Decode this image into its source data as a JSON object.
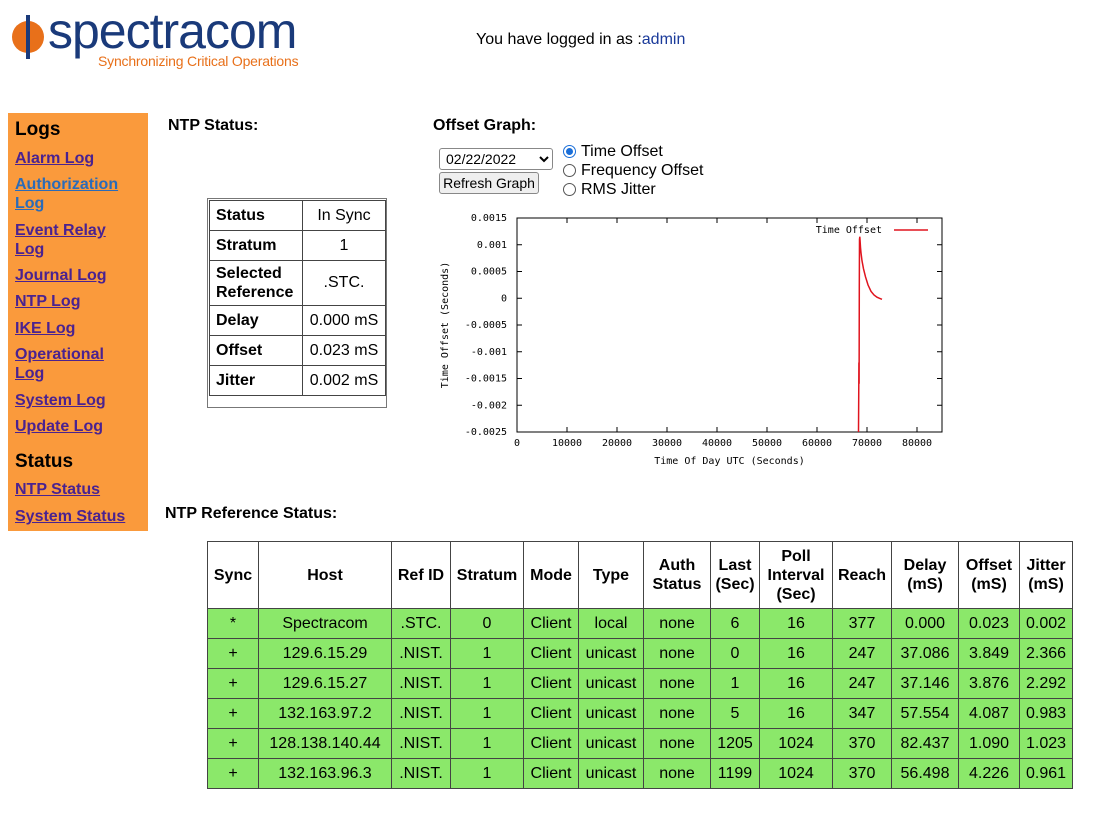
{
  "header": {
    "logo_text": "spectracom",
    "logo_tagline": "Synchronizing Critical Operations",
    "login_prefix": "You have logged in as :",
    "username": "admin"
  },
  "sidebar": {
    "logs_heading": "Logs",
    "logs": [
      {
        "label": "Alarm Log"
      },
      {
        "label": "Authorization Log"
      },
      {
        "label": "Event Relay Log"
      },
      {
        "label": "Journal Log"
      },
      {
        "label": "NTP Log"
      },
      {
        "label": "IKE Log"
      },
      {
        "label": "Operational Log"
      },
      {
        "label": "System Log"
      },
      {
        "label": "Update Log"
      }
    ],
    "status_heading": "Status",
    "status": [
      {
        "label": "NTP Status"
      },
      {
        "label": "System Status"
      }
    ]
  },
  "ntp_status": {
    "title": "NTP Status:",
    "rows": [
      {
        "key": "Status",
        "value": "In Sync"
      },
      {
        "key": "Stratum",
        "value": "1"
      },
      {
        "key": "Selected Reference",
        "value": ".STC."
      },
      {
        "key": "Delay",
        "value": "0.000 mS"
      },
      {
        "key": "Offset",
        "value": "0.023 mS"
      },
      {
        "key": "Jitter",
        "value": "0.002 mS"
      }
    ]
  },
  "offset_graph": {
    "title": "Offset Graph:",
    "date_selected": "02/22/2022",
    "refresh_label": "Refresh Graph",
    "options": [
      {
        "label": "Time Offset",
        "checked": true
      },
      {
        "label": "Frequency Offset",
        "checked": false
      },
      {
        "label": "RMS Jitter",
        "checked": false
      }
    ]
  },
  "chart_data": {
    "type": "line",
    "xlabel": "Time Of Day UTC (Seconds)",
    "ylabel": "Time Offset (Seconds)",
    "xlim": [
      0,
      85000
    ],
    "ylim": [
      -0.0025,
      0.0015
    ],
    "xticks": [
      "0",
      "10000",
      "20000",
      "30000",
      "40000",
      "50000",
      "60000",
      "70000",
      "80000"
    ],
    "yticks": [
      "0.0015",
      "0.001",
      "0.0005",
      "0",
      "-0.0005",
      "-0.001",
      "-0.0015",
      "-0.002",
      "-0.0025"
    ],
    "legend_position": "top-right",
    "series": [
      {
        "name": "Time Offset",
        "color": "#e0141e",
        "x": [
          68300,
          68350,
          68380,
          68420,
          68450,
          68500,
          68550,
          68600,
          68700,
          68800,
          69000,
          69300,
          69700,
          70200,
          70800,
          71400,
          72000,
          72500,
          73000
        ],
        "y": [
          -0.0025,
          -0.0016,
          -0.0012,
          -0.0016,
          0.0002,
          0.0011,
          0.00115,
          0.0011,
          0.00095,
          0.00085,
          0.0007,
          0.00055,
          0.0004,
          0.00025,
          0.00013,
          6e-05,
          2e-05,
          0.0,
          -2e-05
        ]
      }
    ]
  },
  "ref_status": {
    "title": "NTP Reference Status:",
    "headers": [
      "Sync",
      "Host",
      "Ref ID",
      "Stratum",
      "Mode",
      "Type",
      "Auth Status",
      "Last (Sec)",
      "Poll Interval (Sec)",
      "Reach",
      "Delay (mS)",
      "Offset (mS)",
      "Jitter (mS)"
    ],
    "rows": [
      [
        "*",
        "Spectracom",
        ".STC.",
        "0",
        "Client",
        "local",
        "none",
        "6",
        "16",
        "377",
        "0.000",
        "0.023",
        "0.002"
      ],
      [
        "+",
        "129.6.15.29",
        ".NIST.",
        "1",
        "Client",
        "unicast",
        "none",
        "0",
        "16",
        "247",
        "37.086",
        "3.849",
        "2.366"
      ],
      [
        "+",
        "129.6.15.27",
        ".NIST.",
        "1",
        "Client",
        "unicast",
        "none",
        "1",
        "16",
        "247",
        "37.146",
        "3.876",
        "2.292"
      ],
      [
        "+",
        "132.163.97.2",
        ".NIST.",
        "1",
        "Client",
        "unicast",
        "none",
        "5",
        "16",
        "347",
        "57.554",
        "4.087",
        "0.983"
      ],
      [
        "+",
        "128.138.140.44",
        ".NIST.",
        "1",
        "Client",
        "unicast",
        "none",
        "1205",
        "1024",
        "370",
        "82.437",
        "1.090",
        "1.023"
      ],
      [
        "+",
        "132.163.96.3",
        ".NIST.",
        "1",
        "Client",
        "unicast",
        "none",
        "1199",
        "1024",
        "370",
        "56.498",
        "4.226",
        "0.961"
      ]
    ]
  },
  "colors": {
    "sidebar_bg": "#fa9a3c",
    "link": "#4a2290",
    "row_bg": "#8be86a",
    "logo_blue": "#1a3a7a",
    "logo_orange": "#e8701a"
  }
}
